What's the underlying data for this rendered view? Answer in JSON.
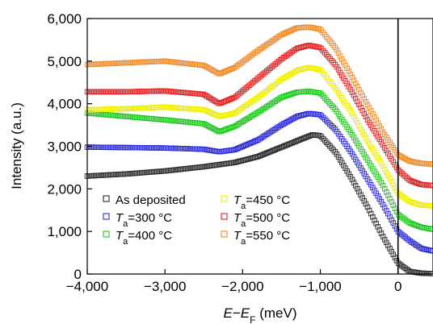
{
  "chart_data": {
    "type": "scatter",
    "title": "",
    "xlabel": "E−E_F (meV)",
    "ylabel": "Intensity (a.u.)",
    "xlim": [
      -4000,
      450
    ],
    "ylim": [
      0,
      6000
    ],
    "x_ticks": [
      -4000,
      -3000,
      -2000,
      -1000,
      0
    ],
    "x_tick_labels": [
      "−4,000",
      "−3,000",
      "−2,000",
      "−1,000",
      "0"
    ],
    "y_ticks": [
      0,
      1000,
      2000,
      3000,
      4000,
      5000,
      6000
    ],
    "y_tick_labels": [
      "0",
      "1,000",
      "2,000",
      "3,000",
      "4,000",
      "5,000",
      "6,000"
    ],
    "grid": false,
    "vline_x": 0,
    "legend_position": "bottom-left",
    "marker": "open-square",
    "series": [
      {
        "name": "As deposited",
        "color": "#2b2b2b",
        "x": [
          -4000,
          -3500,
          -3000,
          -2500,
          -2100,
          -1800,
          -1500,
          -1200,
          -1100,
          -1000,
          -800,
          -600,
          -400,
          -200,
          0,
          150,
          300,
          450
        ],
        "y": [
          2300,
          2350,
          2420,
          2520,
          2620,
          2760,
          2980,
          3200,
          3270,
          3250,
          2850,
          2250,
          1600,
          900,
          260,
          60,
          20,
          10
        ]
      },
      {
        "name": "T_a=300 °C",
        "color": "#2a2ad8",
        "x": [
          -4000,
          -3500,
          -3000,
          -2500,
          -2300,
          -2100,
          -1800,
          -1500,
          -1300,
          -1150,
          -1000,
          -800,
          -600,
          -400,
          -200,
          0,
          150,
          300,
          450
        ],
        "y": [
          2980,
          2970,
          2960,
          2930,
          2870,
          2920,
          3150,
          3500,
          3700,
          3770,
          3740,
          3380,
          2850,
          2250,
          1650,
          1000,
          780,
          600,
          540
        ]
      },
      {
        "name": "T_a=400 °C",
        "color": "#1ec81e",
        "x": [
          -4000,
          -3500,
          -3000,
          -2500,
          -2300,
          -2100,
          -1800,
          -1500,
          -1300,
          -1150,
          -1000,
          -800,
          -600,
          -400,
          -200,
          0,
          150,
          300,
          450
        ],
        "y": [
          3780,
          3700,
          3620,
          3530,
          3340,
          3470,
          3800,
          4150,
          4270,
          4290,
          4250,
          3850,
          3300,
          2700,
          2100,
          1400,
          1200,
          1100,
          1050
        ]
      },
      {
        "name": "T_a=450 °C",
        "color": "#eeee00",
        "x": [
          -4000,
          -3500,
          -3000,
          -2500,
          -2300,
          -2100,
          -1800,
          -1500,
          -1300,
          -1150,
          -1000,
          -800,
          -600,
          -400,
          -200,
          0,
          150,
          300,
          450
        ],
        "y": [
          3860,
          3880,
          3920,
          3860,
          3700,
          3780,
          4150,
          4570,
          4780,
          4850,
          4800,
          4350,
          3800,
          3150,
          2550,
          1900,
          1700,
          1620,
          1600
        ]
      },
      {
        "name": "T_a=500 °C",
        "color": "#e02020",
        "x": [
          -4000,
          -3500,
          -3000,
          -2500,
          -2300,
          -2100,
          -1800,
          -1500,
          -1300,
          -1150,
          -1000,
          -800,
          -600,
          -400,
          -200,
          0,
          150,
          300,
          450
        ],
        "y": [
          4280,
          4280,
          4300,
          4220,
          4000,
          4150,
          4600,
          5050,
          5300,
          5370,
          5320,
          4900,
          4300,
          3650,
          3050,
          2450,
          2200,
          2100,
          2080
        ]
      },
      {
        "name": "T_a=550 °C",
        "color": "#ef8a2a",
        "x": [
          -4000,
          -3500,
          -3000,
          -2500,
          -2300,
          -2100,
          -1800,
          -1500,
          -1300,
          -1150,
          -1000,
          -800,
          -600,
          -400,
          -200,
          0,
          150,
          300,
          450
        ],
        "y": [
          4920,
          4960,
          5000,
          4900,
          4700,
          4850,
          5250,
          5620,
          5780,
          5800,
          5750,
          5300,
          4650,
          4000,
          3350,
          2800,
          2650,
          2600,
          2580
        ]
      }
    ],
    "legend_left": [
      {
        "prefix": "As deposited",
        "sub": "",
        "suffix": ""
      },
      {
        "prefix": "T",
        "sub": "a",
        "suffix": "=300 °C"
      },
      {
        "prefix": "T",
        "sub": "a",
        "suffix": "=400 °C"
      }
    ],
    "legend_right": [
      {
        "prefix": "T",
        "sub": "a",
        "suffix": "=450 °C"
      },
      {
        "prefix": "T",
        "sub": "a",
        "suffix": "=500 °C"
      },
      {
        "prefix": "T",
        "sub": "a",
        "suffix": "=550 °C"
      }
    ]
  }
}
